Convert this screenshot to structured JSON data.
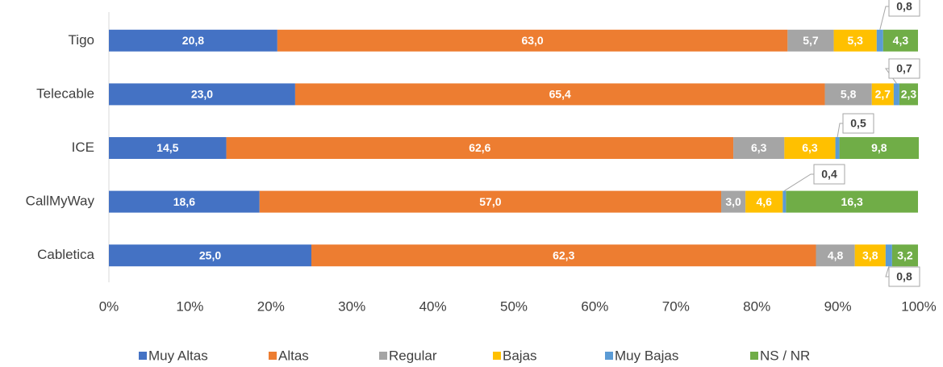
{
  "chart_data": {
    "type": "stacked_bar_horizontal",
    "categories": [
      "Tigo",
      "Telecable",
      "ICE",
      "CallMyWay",
      "Cabletica"
    ],
    "series": [
      {
        "name": "Muy Altas",
        "color": "#4472c4",
        "values": [
          20.8,
          23.0,
          14.5,
          18.6,
          25.0
        ],
        "value_labels": [
          "20,8",
          "23,0",
          "14,5",
          "18,6",
          "25,0"
        ]
      },
      {
        "name": "Altas",
        "color": "#ed7d31",
        "values": [
          63.0,
          65.4,
          62.6,
          57.0,
          62.3
        ],
        "value_labels": [
          "63,0",
          "65,4",
          "62,6",
          "57,0",
          "62,3"
        ]
      },
      {
        "name": "Regular",
        "color": "#a5a5a5",
        "values": [
          5.7,
          5.8,
          6.3,
          3.0,
          4.8
        ],
        "value_labels": [
          "5,7",
          "5,8",
          "6,3",
          "3,0",
          "4,8"
        ]
      },
      {
        "name": "Bajas",
        "color": "#ffc000",
        "values": [
          5.3,
          2.7,
          6.3,
          4.6,
          3.8
        ],
        "value_labels": [
          "5,3",
          "2,7",
          "6,3",
          "4,6",
          "3,8"
        ]
      },
      {
        "name": "Muy Bajas",
        "color": "#5b9bd5",
        "values": [
          0.8,
          0.7,
          0.5,
          0.4,
          0.8
        ],
        "value_labels": [
          "0,8",
          "0,7",
          "0,5",
          "0,4",
          "0,8"
        ]
      },
      {
        "name": "NS / NR",
        "color": "#70ad47",
        "values": [
          4.3,
          2.3,
          9.8,
          16.3,
          3.2
        ],
        "value_labels": [
          "4,3",
          "2,3",
          "9,8",
          "16,3",
          "3,2"
        ]
      }
    ],
    "xlim": [
      0,
      100
    ],
    "xticks": [
      {
        "value": 0,
        "label": "0%"
      },
      {
        "value": 10,
        "label": "10%"
      },
      {
        "value": 20,
        "label": "20%"
      },
      {
        "value": 30,
        "label": "30%"
      },
      {
        "value": 40,
        "label": "40%"
      },
      {
        "value": 50,
        "label": "50%"
      },
      {
        "value": 60,
        "label": "60%"
      },
      {
        "value": 70,
        "label": "70%"
      },
      {
        "value": 80,
        "label": "80%"
      },
      {
        "value": 90,
        "label": "90%"
      },
      {
        "value": 100,
        "label": "100%"
      }
    ],
    "legend": "bottom"
  }
}
